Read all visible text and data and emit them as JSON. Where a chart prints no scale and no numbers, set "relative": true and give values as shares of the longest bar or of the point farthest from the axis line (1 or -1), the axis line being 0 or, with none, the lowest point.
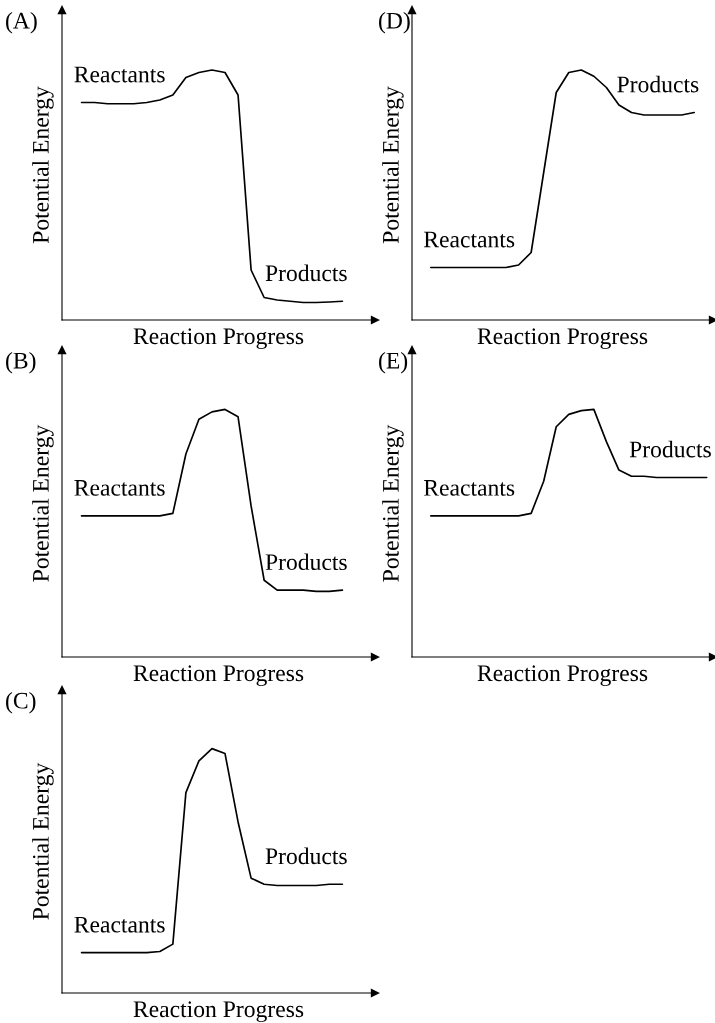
{
  "chart_data": [
    {
      "type": "line",
      "title": "(A)",
      "xlabel": "Reaction Progress",
      "ylabel": "Potential Energy",
      "relative": true,
      "color": "#000000",
      "annotations": [
        "Reactants",
        "Products"
      ],
      "categories": [
        null,
        null,
        null,
        null,
        null,
        null,
        null,
        null,
        null,
        null,
        null,
        null,
        null,
        null,
        null,
        null,
        null,
        null,
        null,
        null,
        null,
        null,
        null,
        null
      ],
      "values": [
        null,
        0.87,
        0.87,
        0.865,
        0.865,
        0.865,
        0.87,
        0.88,
        0.9,
        0.97,
        0.99,
        1,
        0.99,
        0.9,
        0.2,
        0.09,
        0.08,
        0.075,
        0.07,
        0.07,
        0.072,
        0.075,
        null,
        null
      ]
    },
    {
      "type": "line",
      "title": "(D)",
      "xlabel": "Reaction Progress",
      "ylabel": "Potential Energy",
      "relative": true,
      "color": "#000000",
      "annotations": [
        "Reactants",
        "Products"
      ],
      "categories": [
        null,
        null,
        null,
        null,
        null,
        null,
        null,
        null,
        null,
        null,
        null,
        null,
        null,
        null,
        null,
        null,
        null,
        null,
        null,
        null,
        null,
        null,
        null,
        null
      ],
      "values": [
        null,
        0.21,
        0.21,
        0.21,
        0.21,
        0.21,
        0.21,
        0.21,
        0.22,
        0.27,
        0.59,
        0.91,
        0.99,
        1,
        0.975,
        0.93,
        0.86,
        0.83,
        0.82,
        0.82,
        0.82,
        0.82,
        0.83,
        null
      ]
    },
    {
      "type": "line",
      "title": "(B)",
      "xlabel": "Reaction Progress",
      "ylabel": "Potential Energy",
      "relative": true,
      "color": "#000000",
      "annotations": [
        "Reactants",
        "Products"
      ],
      "categories": [
        null,
        null,
        null,
        null,
        null,
        null,
        null,
        null,
        null,
        null,
        null,
        null,
        null,
        null,
        null,
        null,
        null,
        null,
        null,
        null,
        null,
        null,
        null,
        null
      ],
      "values": [
        null,
        0.57,
        0.57,
        0.57,
        0.57,
        0.57,
        0.57,
        0.57,
        0.58,
        0.82,
        0.96,
        0.99,
        1,
        0.97,
        0.61,
        0.31,
        0.27,
        0.27,
        0.27,
        0.265,
        0.265,
        0.27,
        null,
        null
      ]
    },
    {
      "type": "line",
      "title": "(E)",
      "xlabel": "Reaction Progress",
      "ylabel": "Potential Energy",
      "relative": true,
      "color": "#000000",
      "annotations": [
        "Reactants",
        "Products"
      ],
      "categories": [
        null,
        null,
        null,
        null,
        null,
        null,
        null,
        null,
        null,
        null,
        null,
        null,
        null,
        null,
        null,
        null,
        null,
        null,
        null,
        null,
        null,
        null,
        null,
        null
      ],
      "values": [
        null,
        0.57,
        0.57,
        0.57,
        0.57,
        0.57,
        0.57,
        0.57,
        0.57,
        0.58,
        0.71,
        0.93,
        0.98,
        0.995,
        1,
        0.87,
        0.755,
        0.73,
        0.73,
        0.725,
        0.725,
        0.725,
        0.725,
        0.725
      ]
    },
    {
      "type": "line",
      "title": "(C)",
      "xlabel": "Reaction Progress",
      "ylabel": "Potential Energy",
      "relative": true,
      "color": "#000000",
      "annotations": [
        "Reactants",
        "Products"
      ],
      "categories": [
        null,
        null,
        null,
        null,
        null,
        null,
        null,
        null,
        null,
        null,
        null,
        null,
        null,
        null,
        null,
        null,
        null,
        null,
        null,
        null,
        null,
        null,
        null,
        null
      ],
      "values": [
        null,
        0.165,
        0.165,
        0.165,
        0.165,
        0.165,
        0.165,
        0.17,
        0.2,
        0.82,
        0.95,
        1,
        0.98,
        0.7,
        0.47,
        0.445,
        0.44,
        0.44,
        0.44,
        0.44,
        0.445,
        0.445,
        null,
        null
      ]
    }
  ]
}
